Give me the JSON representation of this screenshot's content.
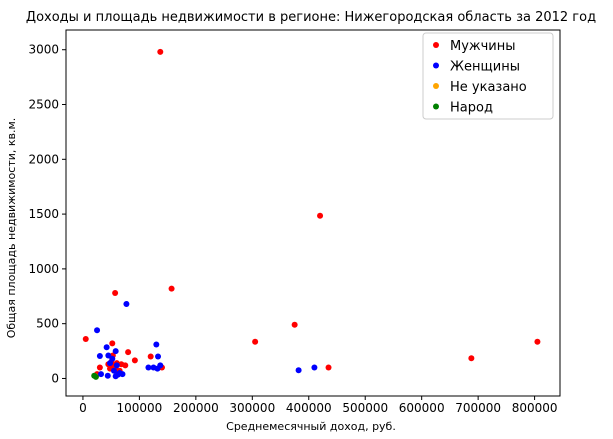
{
  "chart_data": {
    "type": "scatter",
    "title": "Доходы и площадь недвижимости в регионе: Нижегородская область за 2012 год",
    "xlabel": "Среднемесячный доход, руб.",
    "ylabel": "Общая площадь недвижимости, кв.м.",
    "xlim": [
      -30000,
      845000
    ],
    "ylim": [
      -160,
      3180
    ],
    "xticks": [
      0,
      100000,
      200000,
      300000,
      400000,
      500000,
      600000,
      700000,
      800000
    ],
    "yticks": [
      0,
      500,
      1000,
      1500,
      2000,
      2500,
      3000
    ],
    "grid": false,
    "legend_position": "top-right",
    "series": [
      {
        "name": "Мужчины",
        "color": "#ff0000",
        "points": [
          [
            137000,
            2980
          ],
          [
            420000,
            1485
          ],
          [
            157000,
            820
          ],
          [
            57000,
            780
          ],
          [
            375000,
            490
          ],
          [
            5000,
            360
          ],
          [
            305000,
            335
          ],
          [
            805000,
            335
          ],
          [
            52000,
            320
          ],
          [
            688000,
            185
          ],
          [
            80000,
            240
          ],
          [
            53000,
            210
          ],
          [
            120000,
            200
          ],
          [
            92000,
            165
          ],
          [
            50000,
            150
          ],
          [
            60000,
            140
          ],
          [
            45000,
            130
          ],
          [
            55000,
            120
          ],
          [
            68000,
            130
          ],
          [
            75000,
            120
          ],
          [
            30000,
            100
          ],
          [
            48000,
            90
          ],
          [
            435000,
            100
          ],
          [
            140000,
            100
          ],
          [
            58000,
            80
          ],
          [
            65000,
            70
          ],
          [
            25000,
            40
          ]
        ]
      },
      {
        "name": "Женщины",
        "color": "#0000ff",
        "points": [
          [
            77000,
            680
          ],
          [
            25000,
            440
          ],
          [
            130000,
            310
          ],
          [
            42000,
            285
          ],
          [
            58000,
            250
          ],
          [
            30000,
            205
          ],
          [
            45000,
            210
          ],
          [
            133000,
            200
          ],
          [
            52000,
            180
          ],
          [
            48000,
            140
          ],
          [
            60000,
            120
          ],
          [
            137000,
            120
          ],
          [
            116000,
            100
          ],
          [
            125000,
            100
          ],
          [
            132000,
            90
          ],
          [
            410000,
            100
          ],
          [
            382000,
            75
          ],
          [
            55000,
            70
          ],
          [
            65000,
            50
          ],
          [
            70000,
            40
          ],
          [
            32000,
            40
          ],
          [
            44000,
            25
          ],
          [
            58000,
            20
          ],
          [
            62000,
            35
          ]
        ]
      },
      {
        "name": "Не указано",
        "color": "#ffa500",
        "points": [
          [
            22000,
            20
          ]
        ]
      },
      {
        "name": "Народ",
        "color": "#008000",
        "points": [
          [
            20000,
            25
          ],
          [
            23000,
            15
          ]
        ]
      }
    ]
  }
}
